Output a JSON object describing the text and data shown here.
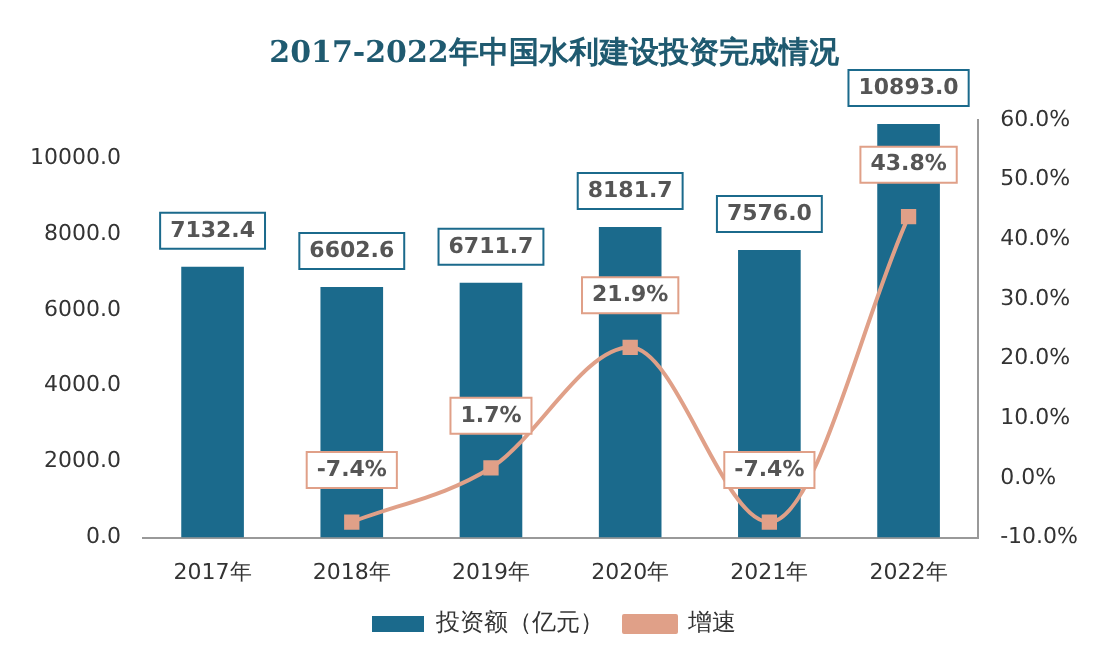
{
  "chart_data": {
    "type": "bar",
    "title": "2017-2022年中国水利建设投资完成情况",
    "categories": [
      "2017年",
      "2018年",
      "2019年",
      "2020年",
      "2021年",
      "2022年"
    ],
    "series": [
      {
        "name": "投资额（亿元）",
        "color": "#1b6a8c",
        "values": [
          7132.4,
          6602.6,
          6711.7,
          8181.7,
          7576.0,
          10893.0
        ],
        "value_labels": [
          "7132.4",
          "6602.6",
          "6711.7",
          "8181.7",
          "7576.0",
          "10893.0"
        ]
      },
      {
        "name": "增速",
        "type": "line",
        "axis": "y2",
        "color": "#e0a088",
        "marker": "square",
        "values": [
          null,
          -7.4,
          1.7,
          21.9,
          -7.4,
          43.8
        ],
        "value_labels": [
          null,
          "-7.4%",
          "1.7%",
          "21.9%",
          "-7.4%",
          "43.8%"
        ]
      }
    ],
    "ylim": [
      0,
      11000
    ],
    "yticks": [
      {
        "value": 0,
        "label": "0.0"
      },
      {
        "value": 2000,
        "label": "2000.0"
      },
      {
        "value": 4000,
        "label": "4000.0"
      },
      {
        "value": 6000,
        "label": "6000.0"
      },
      {
        "value": 8000,
        "label": "8000.0"
      },
      {
        "value": 10000,
        "label": "10000.0"
      }
    ],
    "y2lim": [
      -10,
      60
    ],
    "y2ticks": [
      {
        "value": -10,
        "label": "-10.0%"
      },
      {
        "value": 0,
        "label": "0.0%"
      },
      {
        "value": 10,
        "label": "10.0%"
      },
      {
        "value": 20,
        "label": "20.0%"
      },
      {
        "value": 30,
        "label": "30.0%"
      },
      {
        "value": 40,
        "label": "40.0%"
      },
      {
        "value": 50,
        "label": "50.0%"
      },
      {
        "value": 60,
        "label": "60.0%"
      }
    ],
    "grid": false,
    "legend": "bottom"
  }
}
